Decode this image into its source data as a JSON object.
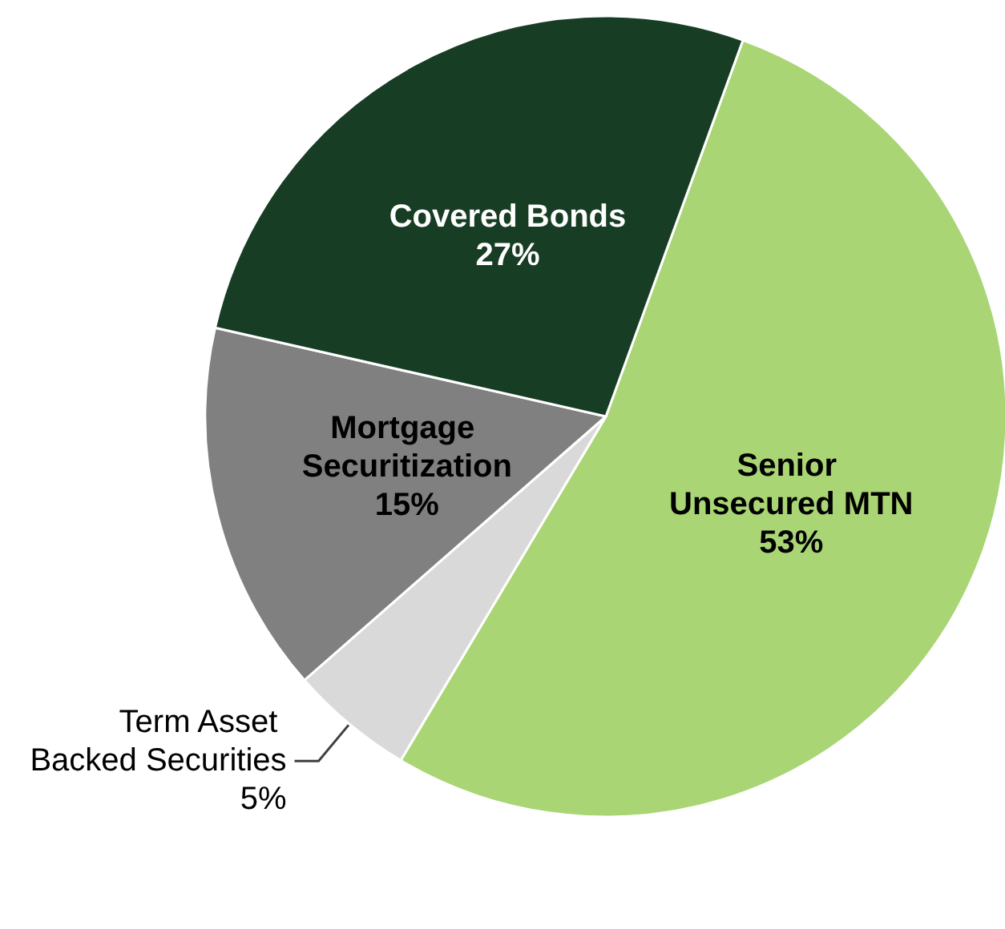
{
  "chart_data": {
    "type": "pie",
    "categories": [
      "Senior Unsecured MTN",
      "Term Asset Backed Securities",
      "Mortgage Securitization",
      "Covered Bonds"
    ],
    "values": [
      53,
      5,
      15,
      27
    ],
    "value_labels": [
      "53%",
      "5%",
      "15%",
      "27%"
    ],
    "colors": [
      "#a9d574",
      "#d9d9d9",
      "#808080",
      "#173d24"
    ],
    "legend": false
  }
}
